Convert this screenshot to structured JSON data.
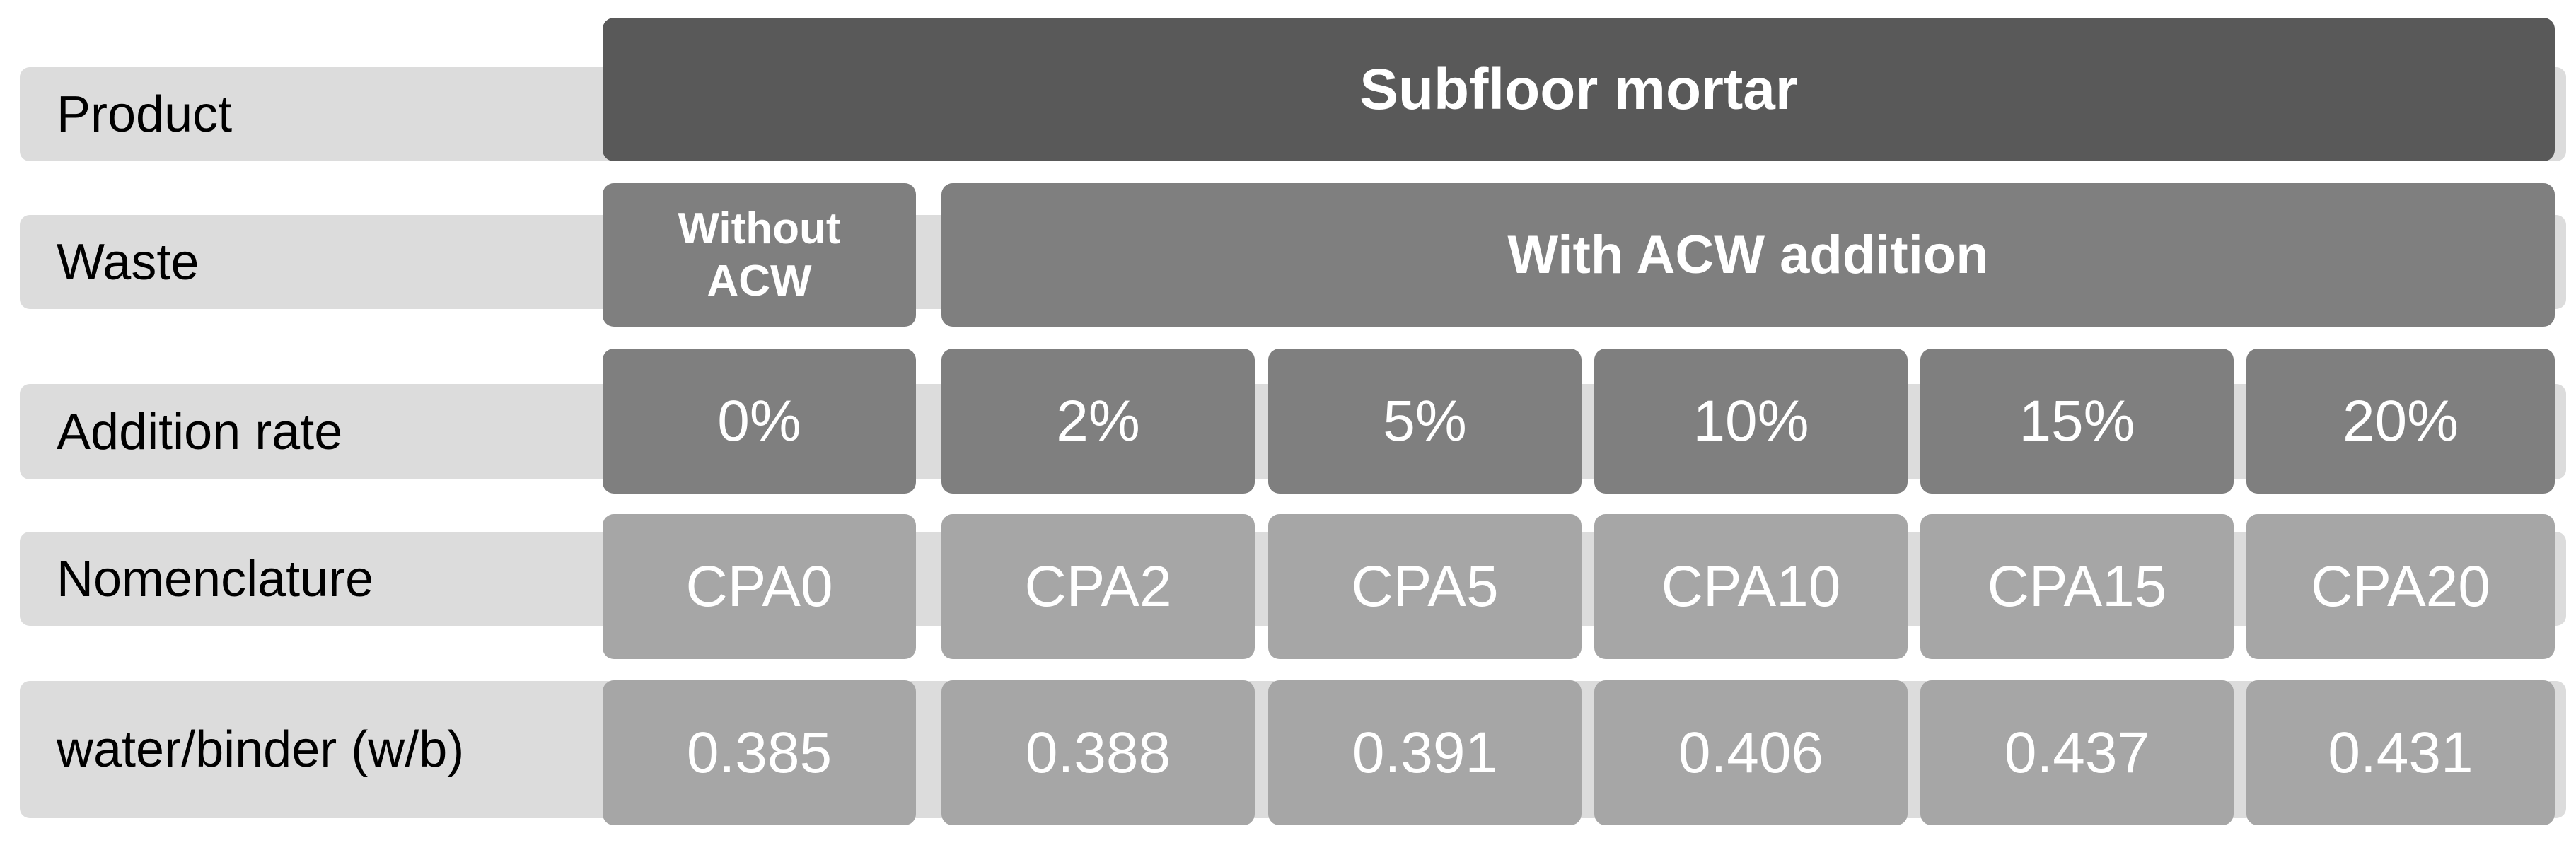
{
  "rows": {
    "product": {
      "label": "Product",
      "value": "Subfloor mortar"
    },
    "waste": {
      "label": "Waste",
      "without_line1": "Without",
      "without_line2": "ACW",
      "with": "With ACW addition"
    },
    "addition_rate": {
      "label": "Addition rate",
      "values": [
        "0%",
        "2%",
        "5%",
        "10%",
        "15%",
        "20%"
      ]
    },
    "nomenclature": {
      "label": "Nomenclature",
      "values": [
        "CPA0",
        "CPA2",
        "CPA5",
        "CPA10",
        "CPA15",
        "CPA20"
      ]
    },
    "water_binder": {
      "label": "water/binder (w/b)",
      "values": [
        "0.385",
        "0.388",
        "0.391",
        "0.406",
        "0.437",
        "0.431"
      ]
    }
  },
  "colors": {
    "label_bg": "#dcdcdc",
    "product_bg": "#595959",
    "waste_bg": "#7f7f7f",
    "rate_bg": "#7f7f7f",
    "nomenclature_bg": "#a6a6a6",
    "wb_bg": "#a6a6a6"
  }
}
